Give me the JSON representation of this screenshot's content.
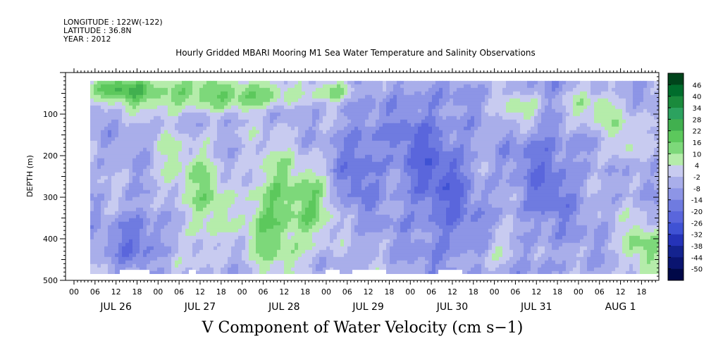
{
  "header": {
    "longitude": "LONGITUDE : 122W(-122)",
    "latitude": "LATITUDE : 36.8N",
    "year": "YEAR : 2012"
  },
  "chart_data": {
    "type": "heatmap",
    "title": "Hourly Gridded MBARI Mooring M1 Sea Water Temperature and Salinity Observations",
    "bottom_title": "V Component of Water Velocity (cm s−1)",
    "ylabel": "DEPTH (m)",
    "y_ticks": [
      "100",
      "200",
      "300",
      "400",
      "500"
    ],
    "ylim": [
      0,
      500
    ],
    "y_inverted": true,
    "data_depth_range": [
      20,
      485
    ],
    "x_hour_ticks": [
      "00",
      "06",
      "12",
      "18",
      "00",
      "06",
      "12",
      "18",
      "00",
      "06",
      "12",
      "18",
      "00",
      "06",
      "12",
      "18",
      "00",
      "06",
      "12",
      "18",
      "00",
      "06",
      "12",
      "18",
      "00",
      "06",
      "12",
      "18"
    ],
    "x_day_labels": [
      "JUL 26",
      "JUL 27",
      "JUL 28",
      "JUL 29",
      "JUL 30",
      "JUL 31",
      "AUG  1"
    ],
    "colorbar": {
      "labels": [
        "46",
        "40",
        "34",
        "28",
        "22",
        "16",
        "10",
        "4",
        "-2",
        "-8",
        "-14",
        "-20",
        "-26",
        "-32",
        "-38",
        "-44",
        "-50"
      ],
      "colors": [
        "#00441b",
        "#006d2c",
        "#1a8a3c",
        "#2ca25f",
        "#41b04f",
        "#5cc85c",
        "#7dd87a",
        "#b5ecaa",
        "#c8cbf0",
        "#a9aeea",
        "#8d95e6",
        "#6f7be0",
        "#5a66dc",
        "#3f52d4",
        "#2533b8",
        "#14238f",
        "#0a1470",
        "#000848"
      ]
    },
    "series_description": "Filled contour of meridional velocity: mostly weak negative (light blue/purple) with green positive patches near surface on Jul 26-28 and mid-depth Jul 27-28; stronger negative (blue) Jul 29-Aug 1."
  }
}
